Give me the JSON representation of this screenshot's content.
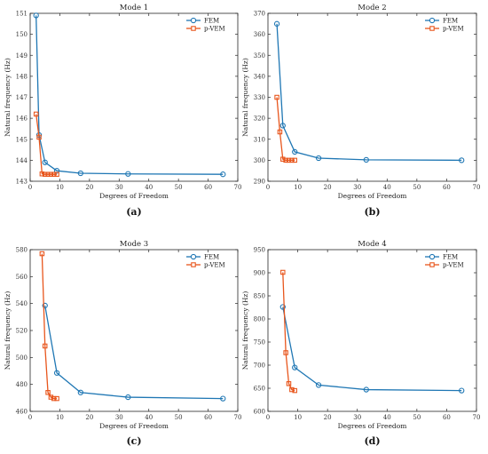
{
  "colors": {
    "fem": "#1f77b4",
    "pvem": "#e8561d"
  },
  "chart_data": [
    {
      "type": "line",
      "panel_label": "(a)",
      "title": "Mode 1",
      "xlabel": "Degrees of Freedom",
      "ylabel": "Natural frequency (Hz)",
      "xlim": [
        0,
        70
      ],
      "ylim": [
        143,
        151
      ],
      "x_ticks": [
        0,
        10,
        20,
        30,
        40,
        50,
        60,
        70
      ],
      "y_ticks": [
        143,
        144,
        145,
        146,
        147,
        148,
        149,
        150,
        151
      ],
      "legend_position": "top-right",
      "series": [
        {
          "name": "FEM",
          "marker": "circle",
          "x": [
            2,
            3,
            5,
            9,
            17,
            33,
            65
          ],
          "y": [
            150.9,
            145.2,
            143.9,
            143.5,
            143.38,
            143.35,
            143.33
          ]
        },
        {
          "name": "p-VEM",
          "marker": "square",
          "x": [
            2,
            3,
            4,
            5,
            6,
            7,
            8,
            9
          ],
          "y": [
            146.2,
            145.1,
            143.35,
            143.33,
            143.33,
            143.33,
            143.33,
            143.33
          ]
        }
      ]
    },
    {
      "type": "line",
      "panel_label": "(b)",
      "title": "Mode 2",
      "xlabel": "Degrees of Freedom",
      "ylabel": "Natural frequency (Hz)",
      "xlim": [
        0,
        70
      ],
      "ylim": [
        290,
        370
      ],
      "x_ticks": [
        0,
        10,
        20,
        30,
        40,
        50,
        60,
        70
      ],
      "y_ticks": [
        290,
        300,
        310,
        320,
        330,
        340,
        350,
        360,
        370
      ],
      "legend_position": "top-right",
      "series": [
        {
          "name": "FEM",
          "marker": "circle",
          "x": [
            3,
            5,
            9,
            17,
            33,
            65
          ],
          "y": [
            365,
            316.5,
            304,
            301,
            300.2,
            300
          ]
        },
        {
          "name": "p-VEM",
          "marker": "square",
          "x": [
            3,
            4,
            5,
            6,
            7,
            8,
            9
          ],
          "y": [
            330,
            313.5,
            300.5,
            300,
            300,
            300,
            300
          ]
        }
      ]
    },
    {
      "type": "line",
      "panel_label": "(c)",
      "title": "Mode 3",
      "xlabel": "Degrees of Freedom",
      "ylabel": "Natural frequency (Hz)",
      "xlim": [
        0,
        70
      ],
      "ylim": [
        460,
        580
      ],
      "x_ticks": [
        0,
        10,
        20,
        30,
        40,
        50,
        60,
        70
      ],
      "y_ticks": [
        460,
        480,
        500,
        520,
        540,
        560,
        580
      ],
      "legend_position": "top-right",
      "series": [
        {
          "name": "FEM",
          "marker": "circle",
          "x": [
            5,
            9,
            17,
            33,
            65
          ],
          "y": [
            538.5,
            488.5,
            474,
            470.5,
            469.5
          ]
        },
        {
          "name": "p-VEM",
          "marker": "square",
          "x": [
            4,
            5,
            6,
            7,
            8,
            9
          ],
          "y": [
            577,
            508.5,
            474,
            470.5,
            469.5,
            469.5
          ]
        }
      ]
    },
    {
      "type": "line",
      "panel_label": "(d)",
      "title": "Mode 4",
      "xlabel": "Degrees of Freedom",
      "ylabel": "Natural frequency (Hz)",
      "xlim": [
        0,
        70
      ],
      "ylim": [
        600,
        950
      ],
      "x_ticks": [
        0,
        10,
        20,
        30,
        40,
        50,
        60,
        70
      ],
      "y_ticks": [
        600,
        650,
        700,
        750,
        800,
        850,
        900,
        950
      ],
      "legend_position": "top-right",
      "series": [
        {
          "name": "FEM",
          "marker": "circle",
          "x": [
            5,
            9,
            17,
            33,
            65
          ],
          "y": [
            826,
            695,
            657,
            647,
            645
          ]
        },
        {
          "name": "p-VEM",
          "marker": "square",
          "x": [
            5,
            6,
            7,
            8,
            9
          ],
          "y": [
            901,
            727,
            660,
            647,
            645
          ]
        }
      ]
    }
  ]
}
